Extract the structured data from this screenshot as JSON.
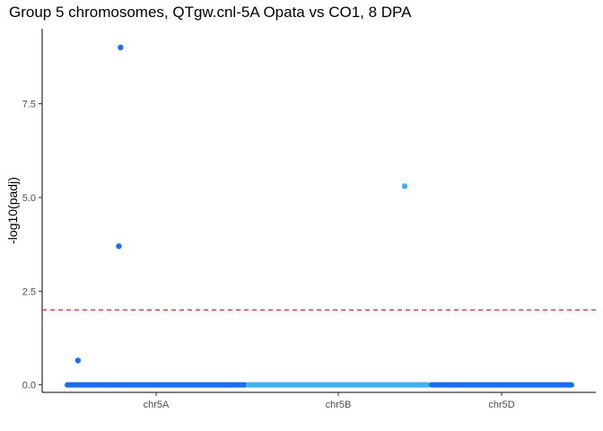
{
  "chart_data": {
    "type": "scatter",
    "title": "Group 5 chromosomes, QTgw.cnl-5A Opata vs CO1, 8 DPA",
    "xlabel": "",
    "ylabel": "-log10(padj)",
    "ylim": [
      -0.2,
      9.5
    ],
    "y_ticks": [
      0.0,
      2.5,
      5.0,
      7.5
    ],
    "y_tick_labels": [
      "0.0",
      "2.5",
      "5.0",
      "7.5"
    ],
    "categories": [
      "chr5A",
      "chr5B",
      "chr5D"
    ],
    "category_colors": [
      "#1a6ff0",
      "#3fb2f0",
      "#1a6ff0"
    ],
    "threshold": {
      "value": 2.0,
      "color": "#e41a1c",
      "style": "dashed"
    },
    "series": [
      {
        "chromosome": "chr5A",
        "points": [
          {
            "pos": 0.3,
            "y": 9.0
          },
          {
            "pos": 0.29,
            "y": 3.7
          },
          {
            "pos": 0.06,
            "y": 0.65
          }
        ],
        "baseline": {
          "y": 0.0,
          "from": 0.0,
          "to": 1.0
        }
      },
      {
        "chromosome": "chr5B",
        "points": [
          {
            "pos": 0.87,
            "y": 5.3
          }
        ],
        "baseline": {
          "y": 0.0,
          "from": 0.0,
          "to": 1.0
        }
      },
      {
        "chromosome": "chr5D",
        "points": [],
        "baseline": {
          "y": 0.0,
          "from": 0.0,
          "to": 1.0
        }
      }
    ],
    "grid": false,
    "legend": "none"
  }
}
